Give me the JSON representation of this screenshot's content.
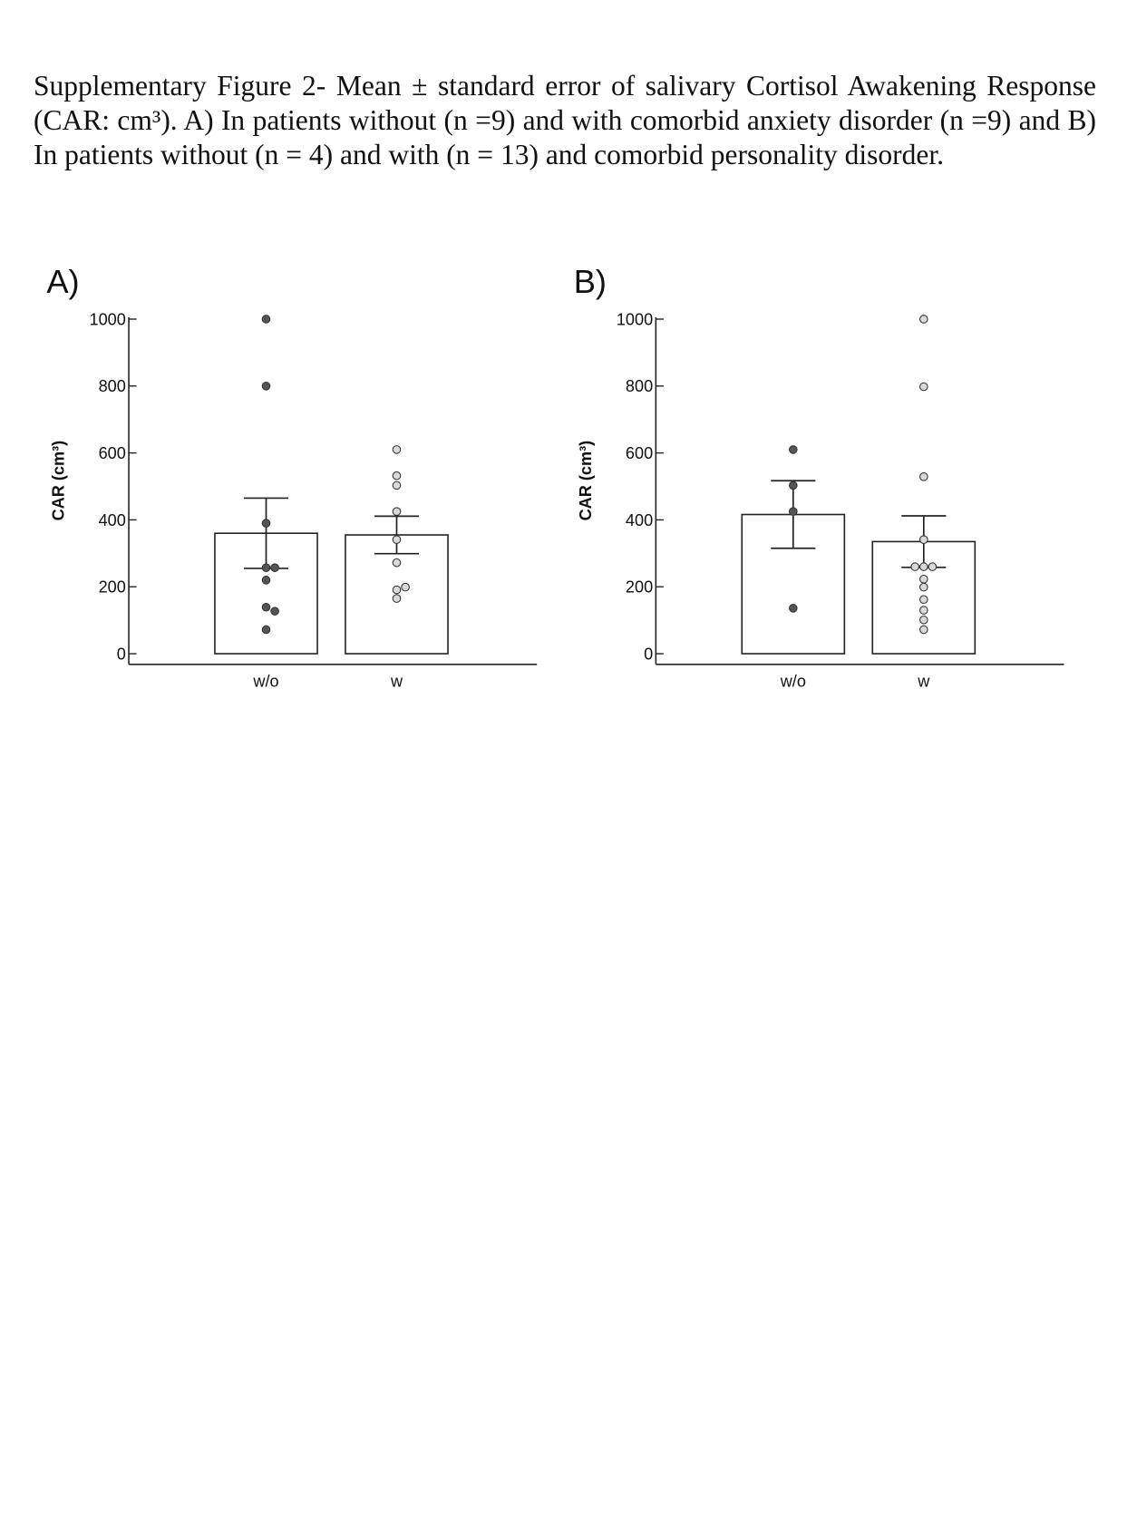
{
  "caption": "Supplementary Figure 2- Mean ± standard error of salivary Cortisol Awakening Response (CAR: cm³). A) In patients without (n =9) and with comorbid anxiety disorder (n =9) and B) In patients without (n = 4) and with (n = 13) and comorbid personality disorder.",
  "chart_data": [
    {
      "type": "bar",
      "panel": "A)",
      "ylabel": "CAR (cm³)",
      "categories": [
        "w/o",
        "w"
      ],
      "values": [
        360,
        355
      ],
      "errors": [
        105,
        56
      ],
      "points": [
        [
          1000,
          800,
          390,
          257,
          257,
          220,
          139,
          127,
          72
        ],
        [
          610,
          532,
          503,
          425,
          341,
          272,
          191,
          199,
          165
        ]
      ],
      "point_colors": [
        "#555555",
        "#d9d9d9"
      ],
      "bar_color": "#ffffff",
      "ylim": [
        0,
        1000
      ],
      "yticks": [
        0,
        200,
        400,
        600,
        800,
        1000
      ]
    },
    {
      "type": "bar",
      "panel": "B)",
      "ylabel": "CAR (cm³)",
      "categories": [
        "w/o",
        "w"
      ],
      "values": [
        416,
        335
      ],
      "errors": [
        101,
        77
      ],
      "points": [
        [
          610,
          503,
          425,
          136
        ],
        [
          1000,
          798,
          529,
          341,
          260,
          260,
          260,
          223,
          199,
          162,
          130,
          101,
          72
        ]
      ],
      "point_colors": [
        "#555555",
        "#d9d9d9"
      ],
      "bar_color": "#ffffff",
      "ylim": [
        0,
        1000
      ],
      "yticks": [
        0,
        200,
        400,
        600,
        800,
        1000
      ]
    }
  ]
}
